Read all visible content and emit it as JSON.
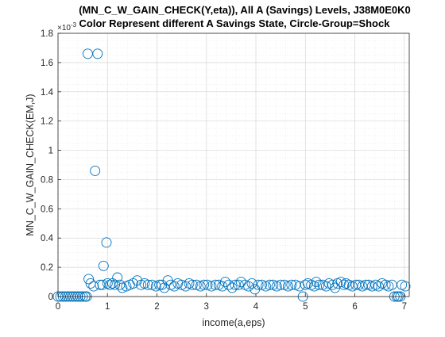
{
  "chart_data": {
    "type": "scatter",
    "title": "(MN_C_W_GAIN_CHECK(Y,eta)), All A (Savings) Levels, J38M0E0K0",
    "subtitle": "Color Represent different A Savings State, Circle-Group=Shock",
    "xlabel": "income(a,eps)",
    "ylabel": "MN_C_W_GAIN_CHECK(EM,J)",
    "y_exponent_label": "×10",
    "y_exponent_power": "-3",
    "xlim": [
      0,
      7.1
    ],
    "ylim": [
      0,
      0.0018
    ],
    "xticks": [
      "0",
      "1",
      "2",
      "3",
      "4",
      "5",
      "6",
      "7"
    ],
    "yticks": [
      "0",
      "0.2",
      "0.4",
      "0.6",
      "0.8",
      "1",
      "1.2",
      "1.4",
      "1.6",
      "1.8"
    ],
    "grid": true,
    "minor_grid": true,
    "marker": "open-circle",
    "marker_color": "#0072BD",
    "series": [
      {
        "points": [
          [
            0.0,
            0.0
          ],
          [
            0.05,
            0.0
          ],
          [
            0.1,
            0.0
          ],
          [
            0.15,
            0.0
          ],
          [
            0.2,
            0.0
          ],
          [
            0.25,
            0.0
          ],
          [
            0.3,
            0.0
          ],
          [
            0.35,
            0.0
          ],
          [
            0.4,
            0.0
          ],
          [
            0.45,
            0.0
          ],
          [
            0.5,
            0.0
          ],
          [
            0.55,
            0.0
          ],
          [
            0.58,
            0.0
          ],
          [
            0.6,
            0.00166
          ],
          [
            0.8,
            0.00166
          ],
          [
            0.75,
            0.00086
          ],
          [
            0.92,
            0.00021
          ],
          [
            0.98,
            0.00037
          ],
          [
            1.2,
            0.00013
          ],
          [
            0.62,
            0.00012
          ],
          [
            0.66,
            9e-05
          ],
          [
            0.72,
            7e-05
          ],
          [
            0.85,
            8e-05
          ],
          [
            0.9,
            8e-05
          ],
          [
            1.0,
            9e-05
          ],
          [
            1.05,
            8e-05
          ],
          [
            1.1,
            9e-05
          ],
          [
            1.15,
            8e-05
          ],
          [
            1.25,
            8e-05
          ],
          [
            1.3,
            6e-05
          ],
          [
            1.38,
            7e-05
          ],
          [
            1.45,
            8e-05
          ],
          [
            1.52,
            9e-05
          ],
          [
            1.6,
            0.00011
          ],
          [
            1.68,
            8e-05
          ],
          [
            1.75,
            9e-05
          ],
          [
            1.82,
            8e-05
          ],
          [
            1.9,
            8e-05
          ],
          [
            1.98,
            7e-05
          ],
          [
            2.05,
            8e-05
          ],
          [
            2.1,
            8e-05
          ],
          [
            2.15,
            6e-05
          ],
          [
            2.22,
            0.00011
          ],
          [
            2.28,
            8e-05
          ],
          [
            2.35,
            7e-05
          ],
          [
            2.42,
            9e-05
          ],
          [
            2.5,
            8e-05
          ],
          [
            2.58,
            7e-05
          ],
          [
            2.65,
            9e-05
          ],
          [
            2.72,
            8e-05
          ],
          [
            2.8,
            8e-05
          ],
          [
            2.88,
            7e-05
          ],
          [
            2.95,
            8e-05
          ],
          [
            3.02,
            8e-05
          ],
          [
            3.1,
            7e-05
          ],
          [
            3.18,
            8e-05
          ],
          [
            3.25,
            8e-05
          ],
          [
            3.32,
            7e-05
          ],
          [
            3.38,
            0.0001
          ],
          [
            3.45,
            8e-05
          ],
          [
            3.52,
            6e-05
          ],
          [
            3.58,
            8e-05
          ],
          [
            3.65,
            8e-05
          ],
          [
            3.7,
            0.0001
          ],
          [
            3.78,
            8e-05
          ],
          [
            3.85,
            7e-05
          ],
          [
            3.92,
            9e-05
          ],
          [
            3.98,
            5e-05
          ],
          [
            4.05,
            8e-05
          ],
          [
            4.12,
            8e-05
          ],
          [
            4.2,
            7e-05
          ],
          [
            4.28,
            8e-05
          ],
          [
            4.35,
            8e-05
          ],
          [
            4.42,
            7e-05
          ],
          [
            4.5,
            8e-05
          ],
          [
            4.58,
            8e-05
          ],
          [
            4.65,
            7e-05
          ],
          [
            4.72,
            8e-05
          ],
          [
            4.8,
            8e-05
          ],
          [
            4.88,
            7e-05
          ],
          [
            4.95,
            0.0
          ],
          [
            5.0,
            8e-05
          ],
          [
            5.05,
            9e-05
          ],
          [
            5.12,
            8e-05
          ],
          [
            5.18,
            7e-05
          ],
          [
            5.22,
            0.0001
          ],
          [
            5.28,
            8e-05
          ],
          [
            5.35,
            8e-05
          ],
          [
            5.42,
            7e-05
          ],
          [
            5.48,
            9e-05
          ],
          [
            5.55,
            8e-05
          ],
          [
            5.6,
            6e-05
          ],
          [
            5.65,
            9e-05
          ],
          [
            5.72,
            0.0001
          ],
          [
            5.78,
            8e-05
          ],
          [
            5.82,
            9e-05
          ],
          [
            5.88,
            8e-05
          ],
          [
            5.95,
            7e-05
          ],
          [
            6.02,
            8e-05
          ],
          [
            6.08,
            8e-05
          ],
          [
            6.15,
            7e-05
          ],
          [
            6.22,
            8e-05
          ],
          [
            6.28,
            8e-05
          ],
          [
            6.35,
            7e-05
          ],
          [
            6.42,
            8e-05
          ],
          [
            6.48,
            7e-05
          ],
          [
            6.55,
            9e-05
          ],
          [
            6.62,
            8e-05
          ],
          [
            6.68,
            7e-05
          ],
          [
            6.75,
            8e-05
          ],
          [
            6.8,
            0.0
          ],
          [
            6.85,
            0.0
          ],
          [
            6.88,
            0.0
          ],
          [
            6.92,
            0.0
          ],
          [
            6.95,
            8e-05
          ],
          [
            7.02,
            7e-05
          ]
        ]
      }
    ]
  }
}
